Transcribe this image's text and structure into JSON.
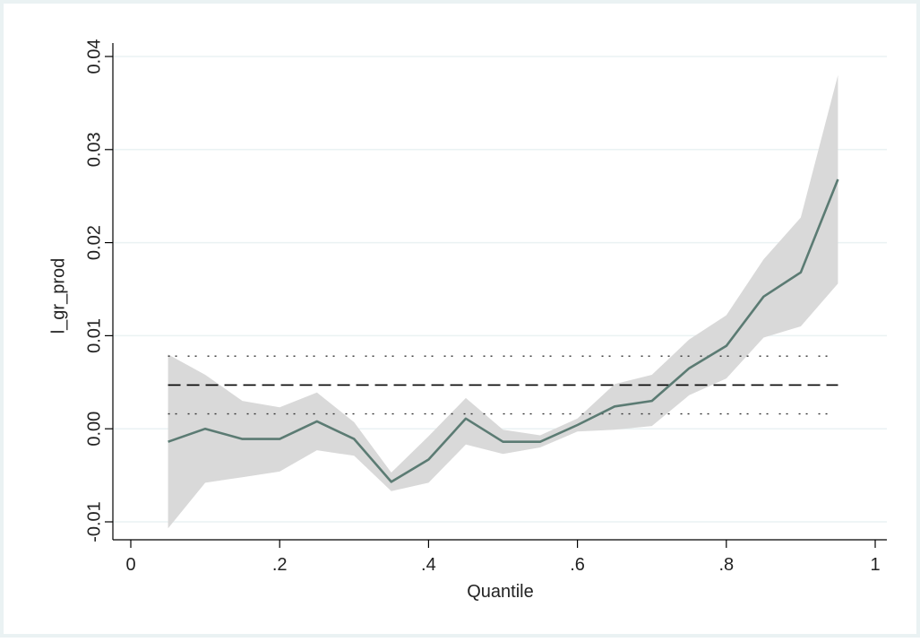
{
  "chart_data": {
    "type": "line",
    "xlabel": "Quantile",
    "ylabel": "l_gr_prod",
    "xlim": [
      0,
      1
    ],
    "ylim": [
      -0.012,
      0.04
    ],
    "x_ticks": [
      0,
      0.2,
      0.4,
      0.6,
      0.8,
      1
    ],
    "x_tick_labels": [
      "0",
      ".2",
      ".4",
      ".6",
      ".8",
      "1"
    ],
    "y_ticks": [
      -0.01,
      0,
      0.01,
      0.02,
      0.03,
      0.04
    ],
    "y_tick_labels": [
      "-0.01",
      "0.00",
      "0.01",
      "0.02",
      "0.03",
      "0.04"
    ],
    "grid": true,
    "quantile_estimate": {
      "x": [
        0.05,
        0.1,
        0.15,
        0.2,
        0.25,
        0.3,
        0.35,
        0.4,
        0.45,
        0.5,
        0.55,
        0.6,
        0.65,
        0.7,
        0.75,
        0.8,
        0.85,
        0.9,
        0.95
      ],
      "y": [
        -0.0014,
        0.0,
        -0.0011,
        -0.0011,
        0.0008,
        -0.0011,
        -0.0057,
        -0.0033,
        0.0011,
        -0.0014,
        -0.0014,
        0.0004,
        0.0024,
        0.003,
        0.0065,
        0.0089,
        0.0142,
        0.0168,
        0.0268
      ],
      "ci_lower": [
        -0.0107,
        -0.0058,
        -0.0052,
        -0.0046,
        -0.0023,
        -0.0029,
        -0.0067,
        -0.0058,
        -0.0017,
        -0.0027,
        -0.002,
        -0.0003,
        -0.0001,
        0.0003,
        0.0036,
        0.0054,
        0.0098,
        0.011,
        0.0156
      ],
      "ci_upper": [
        0.008,
        0.0058,
        0.003,
        0.0023,
        0.0039,
        0.0007,
        -0.0047,
        -0.0008,
        0.0033,
        -0.0001,
        -0.0007,
        0.0011,
        0.0048,
        0.0058,
        0.0096,
        0.0122,
        0.0182,
        0.0227,
        0.038
      ]
    },
    "ols_estimate": {
      "value": 0.0047,
      "ci_lower": 0.0016,
      "ci_upper": 0.0078
    },
    "colors": {
      "outer_background": "#eaf2f3",
      "plot_background": "#ffffff",
      "line": "#5b7b73",
      "band": "#d9d9d9",
      "grid": "#eaf2f3",
      "ols_line": "#000000"
    }
  }
}
